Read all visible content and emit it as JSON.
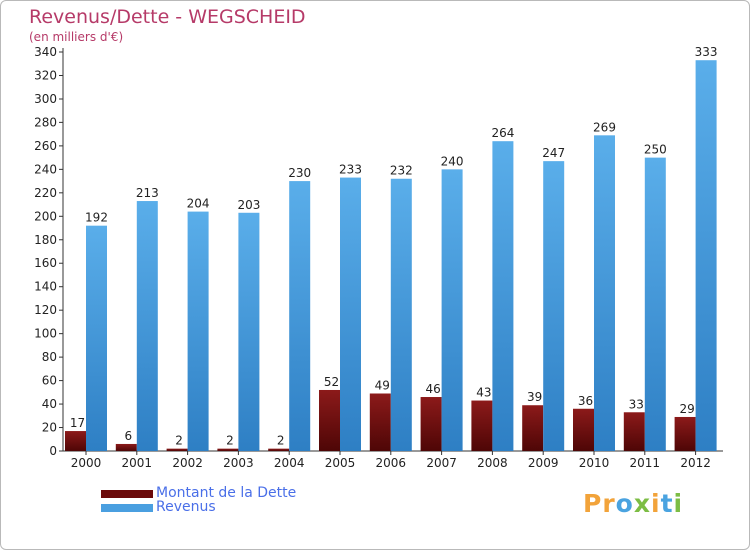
{
  "chart_data": {
    "type": "bar",
    "title": "Revenus/Dette - WEGSCHEID",
    "subtitle": "(en milliers d'€)",
    "categories": [
      "2000",
      "2001",
      "2002",
      "2003",
      "2004",
      "2005",
      "2006",
      "2007",
      "2008",
      "2009",
      "2010",
      "2011",
      "2012"
    ],
    "series": [
      {
        "name": "Montant de la Dette",
        "color": "#7a0d0d",
        "values": [
          17,
          6,
          2,
          2,
          2,
          52,
          49,
          46,
          43,
          39,
          36,
          33,
          29
        ]
      },
      {
        "name": "Revenus",
        "color": "#4a9fe0",
        "values": [
          192,
          213,
          204,
          203,
          230,
          233,
          232,
          240,
          264,
          247,
          269,
          250,
          333
        ]
      }
    ],
    "ylim": [
      0,
      340
    ],
    "yticks": [
      0,
      20,
      40,
      60,
      80,
      100,
      120,
      140,
      160,
      180,
      200,
      220,
      240,
      260,
      280,
      300,
      320,
      340
    ],
    "grid": false,
    "legend_position": "bottom-left"
  },
  "logo": {
    "text": "Proxiti"
  }
}
